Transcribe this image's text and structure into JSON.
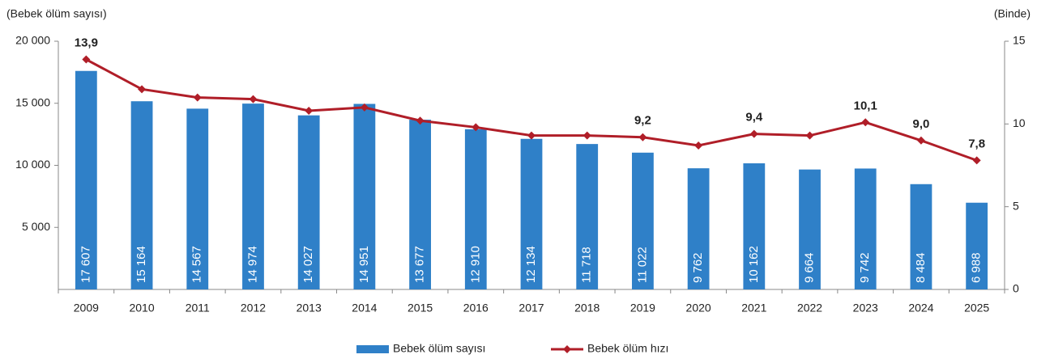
{
  "chart_data": {
    "type": "bar",
    "y_axis_label": "(Bebek ölüm sayısı)",
    "y2_axis_label": "(Binde)",
    "categories": [
      "2009",
      "2010",
      "2011",
      "2012",
      "2013",
      "2014",
      "2015",
      "2016",
      "2017",
      "2018",
      "2019",
      "2020",
      "2021",
      "2022",
      "2023",
      "2024",
      "2025"
    ],
    "series": [
      {
        "name": "Bebek ölüm sayısı",
        "type": "bar",
        "color": "#2f80c8",
        "values": [
          17607,
          15164,
          14567,
          14974,
          14027,
          14951,
          13677,
          12910,
          12134,
          11718,
          11022,
          9762,
          10162,
          9664,
          9742,
          8484,
          6988
        ],
        "value_labels": [
          "17 607",
          "15 164",
          "14 567",
          "14 974",
          "14 027",
          "14 951",
          "13 677",
          "12 910",
          "12 134",
          "11 718",
          "11 022",
          "9 762",
          "10 162",
          "9 664",
          "9 742",
          "8 484",
          "6 988"
        ]
      },
      {
        "name": "Bebek ölüm hızı",
        "type": "line",
        "axis": "y2",
        "color": "#b01e28",
        "values": [
          13.9,
          12.1,
          11.6,
          11.5,
          10.8,
          11.0,
          10.2,
          9.8,
          9.3,
          9.3,
          9.2,
          8.7,
          9.4,
          9.3,
          10.1,
          9.0,
          7.8
        ],
        "value_labels": [
          "13,9",
          null,
          null,
          null,
          null,
          null,
          null,
          null,
          null,
          null,
          "9,2",
          null,
          "9,4",
          null,
          "10,1",
          "9,0",
          "7,8"
        ]
      }
    ],
    "ylim": [
      0,
      20000
    ],
    "yticks": [
      {
        "value": 5000,
        "label": "5 000"
      },
      {
        "value": 10000,
        "label": "10 000"
      },
      {
        "value": 15000,
        "label": "15 000"
      },
      {
        "value": 20000,
        "label": "20 000"
      }
    ],
    "y2lim": [
      0,
      15
    ],
    "y2ticks": [
      0,
      5,
      10,
      15
    ],
    "legend": "bottom"
  }
}
